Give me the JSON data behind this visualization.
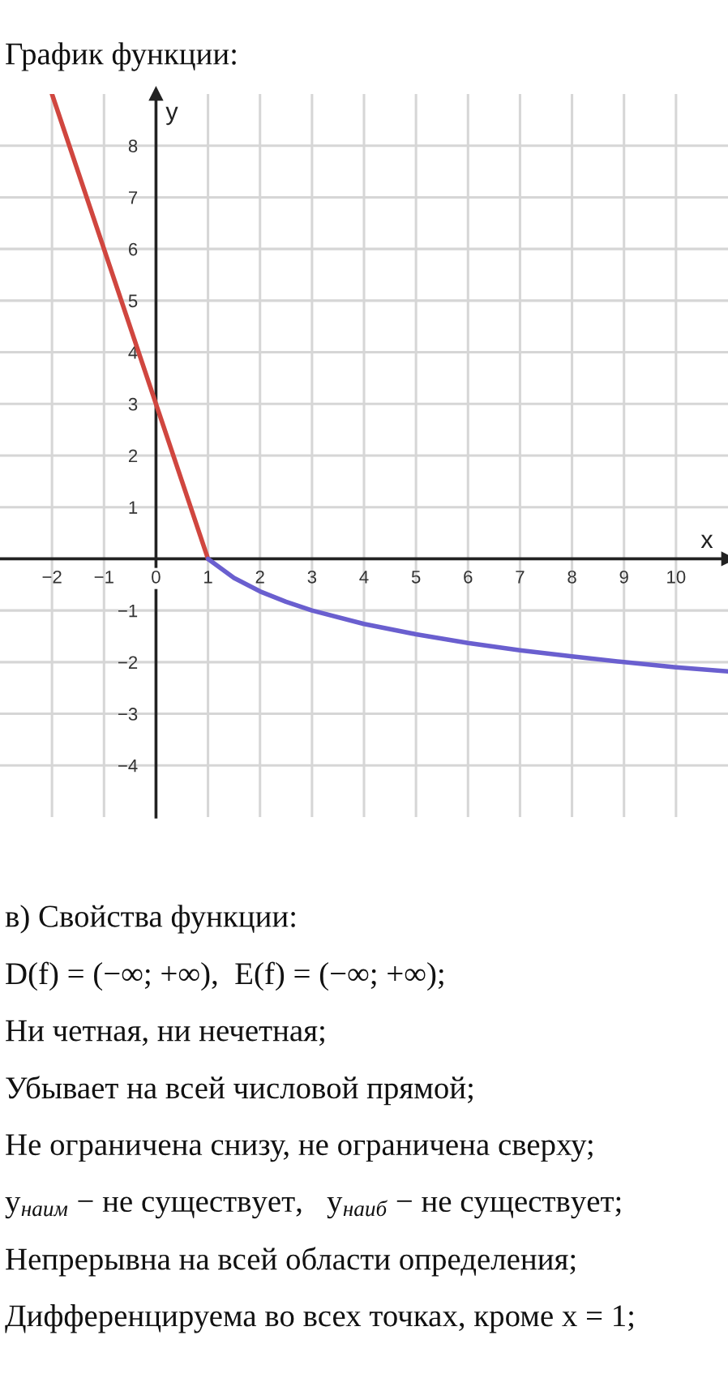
{
  "chart_data": {
    "type": "line",
    "title": "График функции:",
    "xlabel": "x",
    "ylabel": "y",
    "series": [
      {
        "color": "#d0463f",
        "x": [
          -2,
          0,
          1
        ],
        "values": [
          9,
          3,
          0
        ]
      },
      {
        "color": "#6a5fcf",
        "x": [
          1,
          1.5,
          2,
          2.5,
          3,
          4,
          5,
          6,
          7,
          8,
          9,
          10,
          11
        ],
        "values": [
          0,
          -0.37,
          -0.63,
          -0.83,
          -1,
          -1.26,
          -1.46,
          -1.63,
          -1.77,
          -1.89,
          -2,
          -2.1,
          -2.18
        ]
      }
    ],
    "xlim": [
      -3,
      11
    ],
    "ylim": [
      -5,
      9
    ],
    "xticks": [
      {
        "value": -2,
        "label": "−2"
      },
      {
        "value": -1,
        "label": "−1"
      },
      0,
      1,
      2,
      3,
      4,
      5,
      6,
      7,
      8,
      9,
      10
    ],
    "yticks": [
      {
        "value": -4,
        "label": "−4"
      },
      {
        "value": -3,
        "label": "−3"
      },
      {
        "value": -2,
        "label": "−2"
      },
      {
        "value": -1,
        "label": "−1"
      },
      1,
      2,
      3,
      4,
      5,
      6,
      7,
      8
    ],
    "grid": true,
    "annotations": [
      "в) Свойства функции:",
      "D(f) = (−∞; +∞),  E(f) = (−∞; +∞);",
      "Ни четная, ни нечетная;",
      "Убывает на всей числовой прямой;",
      "Не ограничена снизу, не ограничена сверху;",
      "y$_{наим}$ − не существует,   y$_{наиб}$ − не существует;",
      "Непрерывна на всей области определения;",
      "Дифференцируема во всех точках, кроме x = 1;"
    ]
  }
}
